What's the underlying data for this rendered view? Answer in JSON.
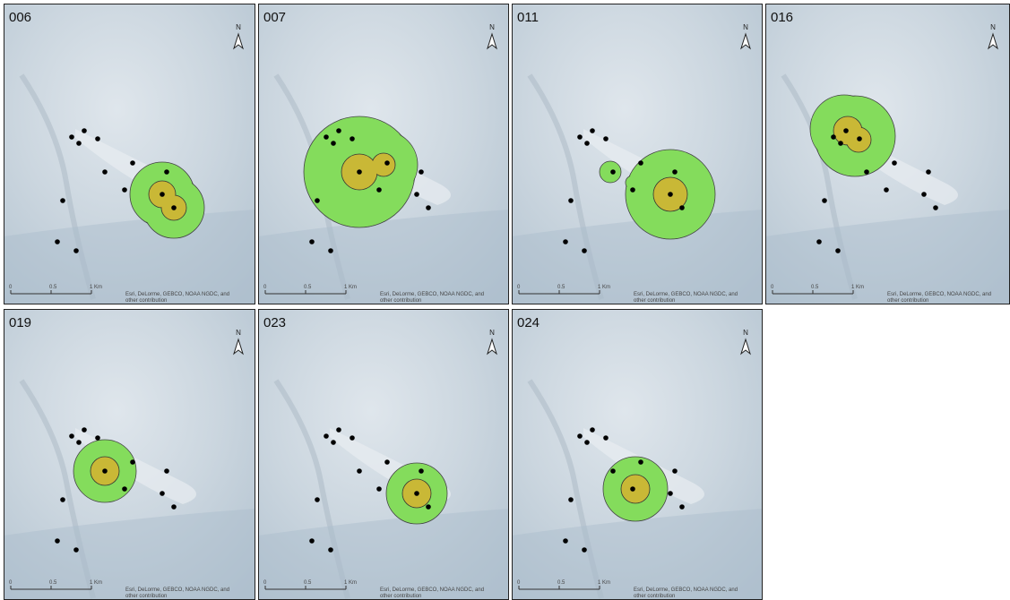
{
  "panels": [
    {
      "label": "006"
    },
    {
      "label": "007"
    },
    {
      "label": "011"
    },
    {
      "label": "016"
    },
    {
      "label": "019"
    },
    {
      "label": "023"
    },
    {
      "label": "024"
    }
  ],
  "map_labels": {
    "north": "N",
    "scale": [
      "0",
      "0.5",
      "1 Km"
    ],
    "attribution": [
      "Esri, DeLorme, GEBCO, NOAA NGDC, and",
      "other contribution"
    ]
  }
}
